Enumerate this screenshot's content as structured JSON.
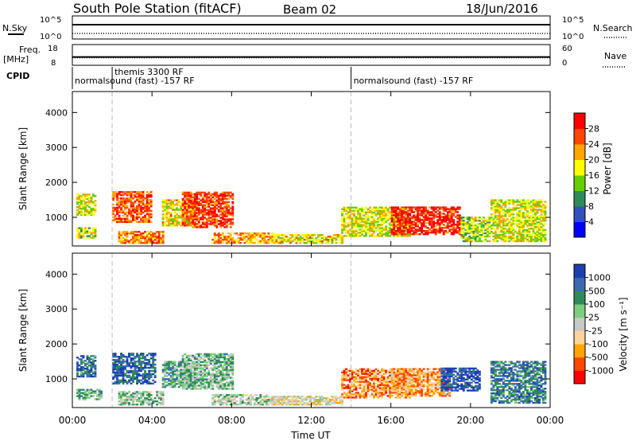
{
  "header": {
    "station": "South Pole Station (fitACF)",
    "beam": "Beam 02",
    "date": "18/Jun/2016"
  },
  "noise_panel": {
    "left_label": "N.Sky",
    "right_label": "N.Search",
    "left_ticks": [
      "10^5",
      "10^0"
    ],
    "right_ticks": [
      "10^5",
      "10^0"
    ],
    "left_log_range": [
      0,
      5
    ],
    "sky_level": 3.1,
    "search_level": 1.2
  },
  "freq_panel": {
    "left_label": "Freq.",
    "left_unit": "[MHz]",
    "left_ticks": [
      "18",
      "8"
    ],
    "left_range": [
      8,
      18
    ],
    "right_label": "Nave",
    "right_ticks": [
      "60",
      "0"
    ],
    "right_range": [
      0,
      60
    ],
    "freq_level": 12,
    "nave_level": 22
  },
  "cpid_panel": {
    "label": "CPID",
    "segments": [
      {
        "text": "normalsound (fast) -157 RF",
        "start": 0,
        "row": "bottom"
      },
      {
        "text": "themis 3300 RF",
        "start": 2,
        "row": "top"
      },
      {
        "text": "normalsound (fast) -157 RF",
        "start": 14,
        "row": "bottom"
      }
    ],
    "dashed_markers": [
      2,
      14
    ]
  },
  "chart_data": [
    {
      "type": "heatmap",
      "name": "power",
      "ylabel": "Slant Range [km]",
      "yticks": [
        1000,
        2000,
        3000,
        4000
      ],
      "ylim": [
        180,
        4600
      ],
      "xlim": [
        0,
        24
      ],
      "colorbar_label": "Power [dB]",
      "colorbar_ticks": [
        "28",
        "24",
        "20",
        "16",
        "12",
        "8",
        "4"
      ],
      "colorbar_range": [
        0,
        32
      ],
      "colorbar_colors": [
        "#0000ff",
        "#3050c0",
        "#2e8b57",
        "#66cd00",
        "#ffff00",
        "#ffa500",
        "#ff4500",
        "#ff0000"
      ],
      "echo_regions": [
        {
          "t0": 0.2,
          "t1": 1.2,
          "r0": 1050,
          "r1": 1650,
          "level": 0.55
        },
        {
          "t0": 0.2,
          "t1": 1.2,
          "r0": 400,
          "r1": 700,
          "level": 0.5
        },
        {
          "t0": 2.0,
          "t1": 4.0,
          "r0": 850,
          "r1": 1750,
          "level": 0.8
        },
        {
          "t0": 2.3,
          "t1": 4.5,
          "r0": 250,
          "r1": 600,
          "level": 0.75
        },
        {
          "t0": 4.5,
          "t1": 6.2,
          "r0": 750,
          "r1": 1500,
          "level": 0.6
        },
        {
          "t0": 5.5,
          "t1": 8.0,
          "r0": 700,
          "r1": 1700,
          "level": 0.85
        },
        {
          "t0": 7.0,
          "t1": 10.0,
          "r0": 250,
          "r1": 550,
          "level": 0.7
        },
        {
          "t0": 10.0,
          "t1": 13.5,
          "r0": 250,
          "r1": 500,
          "level": 0.6
        },
        {
          "t0": 13.5,
          "t1": 17.0,
          "r0": 450,
          "r1": 1300,
          "level": 0.55
        },
        {
          "t0": 16.0,
          "t1": 19.5,
          "r0": 500,
          "r1": 1300,
          "level": 0.9
        },
        {
          "t0": 19.5,
          "t1": 21.0,
          "r0": 300,
          "r1": 1000,
          "level": 0.5
        },
        {
          "t0": 21.0,
          "t1": 23.8,
          "r0": 300,
          "r1": 1500,
          "level": 0.55
        }
      ]
    },
    {
      "type": "heatmap",
      "name": "velocity",
      "ylabel": "Slant Range [km]",
      "yticks": [
        1000,
        2000,
        3000,
        4000
      ],
      "ylim": [
        180,
        4600
      ],
      "xlim": [
        0,
        24
      ],
      "xlabel": "Time UT",
      "xticks": [
        "00:00",
        "04:00",
        "08:00",
        "12:00",
        "16:00",
        "20:00",
        "00:00"
      ],
      "colorbar_label": "Velocity [m s⁻¹]",
      "colorbar_ticks": [
        "1000",
        "500",
        "100",
        "25",
        "-25",
        "-100",
        "-500",
        "-1000"
      ],
      "colorbar_colors": [
        "#ff0000",
        "#ff4500",
        "#ffa500",
        "#ffd39b",
        "#c8c8c8",
        "#7ccd7c",
        "#2e8b57",
        "#3a6ab0",
        "#1c3fb0"
      ],
      "echo_regions": [
        {
          "t0": 0.2,
          "t1": 1.2,
          "r0": 1050,
          "r1": 1650,
          "level": 0.82
        },
        {
          "t0": 0.2,
          "t1": 1.5,
          "r0": 400,
          "r1": 700,
          "level": 0.65
        },
        {
          "t0": 2.0,
          "t1": 4.2,
          "r0": 850,
          "r1": 1750,
          "level": 0.85
        },
        {
          "t0": 2.3,
          "t1": 4.5,
          "r0": 250,
          "r1": 650,
          "level": 0.6
        },
        {
          "t0": 4.5,
          "t1": 6.2,
          "r0": 750,
          "r1": 1500,
          "level": 0.7
        },
        {
          "t0": 5.5,
          "t1": 8.0,
          "r0": 700,
          "r1": 1700,
          "level": 0.62
        },
        {
          "t0": 7.0,
          "t1": 10.0,
          "r0": 250,
          "r1": 550,
          "level": 0.55
        },
        {
          "t0": 10.0,
          "t1": 13.5,
          "r0": 250,
          "r1": 500,
          "level": 0.45
        },
        {
          "t0": 13.5,
          "t1": 17.0,
          "r0": 450,
          "r1": 1300,
          "level": 0.25
        },
        {
          "t0": 16.0,
          "t1": 19.0,
          "r0": 500,
          "r1": 1300,
          "level": 0.3
        },
        {
          "t0": 18.5,
          "t1": 20.5,
          "r0": 650,
          "r1": 1300,
          "level": 0.92
        },
        {
          "t0": 21.0,
          "t1": 23.8,
          "r0": 300,
          "r1": 1500,
          "level": 0.78
        }
      ]
    }
  ]
}
